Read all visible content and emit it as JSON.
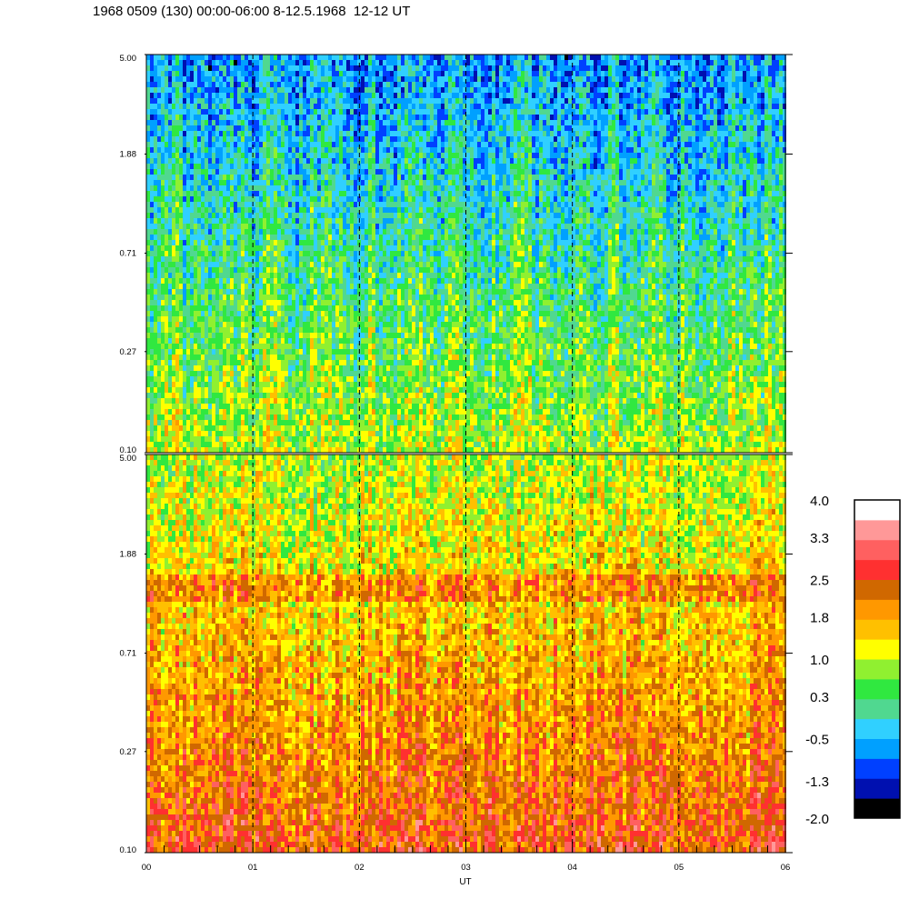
{
  "title": "1968 0509 (130) 00:00-06:00 8-12.5.1968  12-12 UT",
  "colors": {
    "scale": [
      "#000000",
      "#0010b0",
      "#0040ff",
      "#00a0ff",
      "#30d0ff",
      "#50d890",
      "#30e840",
      "#90f030",
      "#ffff00",
      "#ffc000",
      "#ff9800",
      "#d06800",
      "#ff3030",
      "#ff6060",
      "#ff9898",
      "#ffffff"
    ],
    "axis": "#000000",
    "background": "#ffffff"
  },
  "chart_data": [
    {
      "type": "heatmap",
      "panel": "upper",
      "title": "",
      "xlabel": "",
      "ylabel": "",
      "y_scale": "log",
      "ylim": [
        0.1,
        5.0
      ],
      "y_tick_labels": [
        "5.00",
        "1.88",
        "0.71",
        "0.27",
        "0.10"
      ],
      "y_tick_values": [
        5.0,
        1.88,
        0.71,
        0.27,
        0.1
      ],
      "xlim": [
        0,
        6
      ],
      "x_dashed_lines": [
        1,
        2,
        3,
        4,
        5
      ],
      "dominant_levels": [
        -0.5,
        0.3,
        1.0
      ]
    },
    {
      "type": "heatmap",
      "panel": "lower",
      "title": "",
      "xlabel": "UT",
      "ylabel": "",
      "y_scale": "log",
      "ylim": [
        0.1,
        5.0
      ],
      "y_tick_labels": [
        "5.00",
        "1.88",
        "0.71",
        "0.27",
        "0.10"
      ],
      "y_tick_values": [
        5.0,
        1.88,
        0.71,
        0.27,
        0.1
      ],
      "xlim": [
        0,
        6
      ],
      "x_tick_labels": [
        "00",
        "01",
        "02",
        "03",
        "04",
        "05",
        "06"
      ],
      "x_tick_values": [
        0,
        1,
        2,
        3,
        4,
        5,
        6
      ],
      "x_dashed_lines": [
        1,
        2,
        3,
        4,
        5
      ],
      "dominant_levels": [
        1.0,
        1.8,
        2.5
      ]
    }
  ],
  "colorbar": {
    "labels": [
      "4.0",
      "3.3",
      "2.5",
      "1.8",
      "1.0",
      "0.3",
      "-0.5",
      "-1.3",
      "-2.0"
    ],
    "values": [
      4.0,
      3.3,
      2.5,
      1.8,
      1.0,
      0.3,
      -0.5,
      -1.3,
      -2.0
    ],
    "levels": 16,
    "min": -2.0,
    "max": 4.0
  }
}
